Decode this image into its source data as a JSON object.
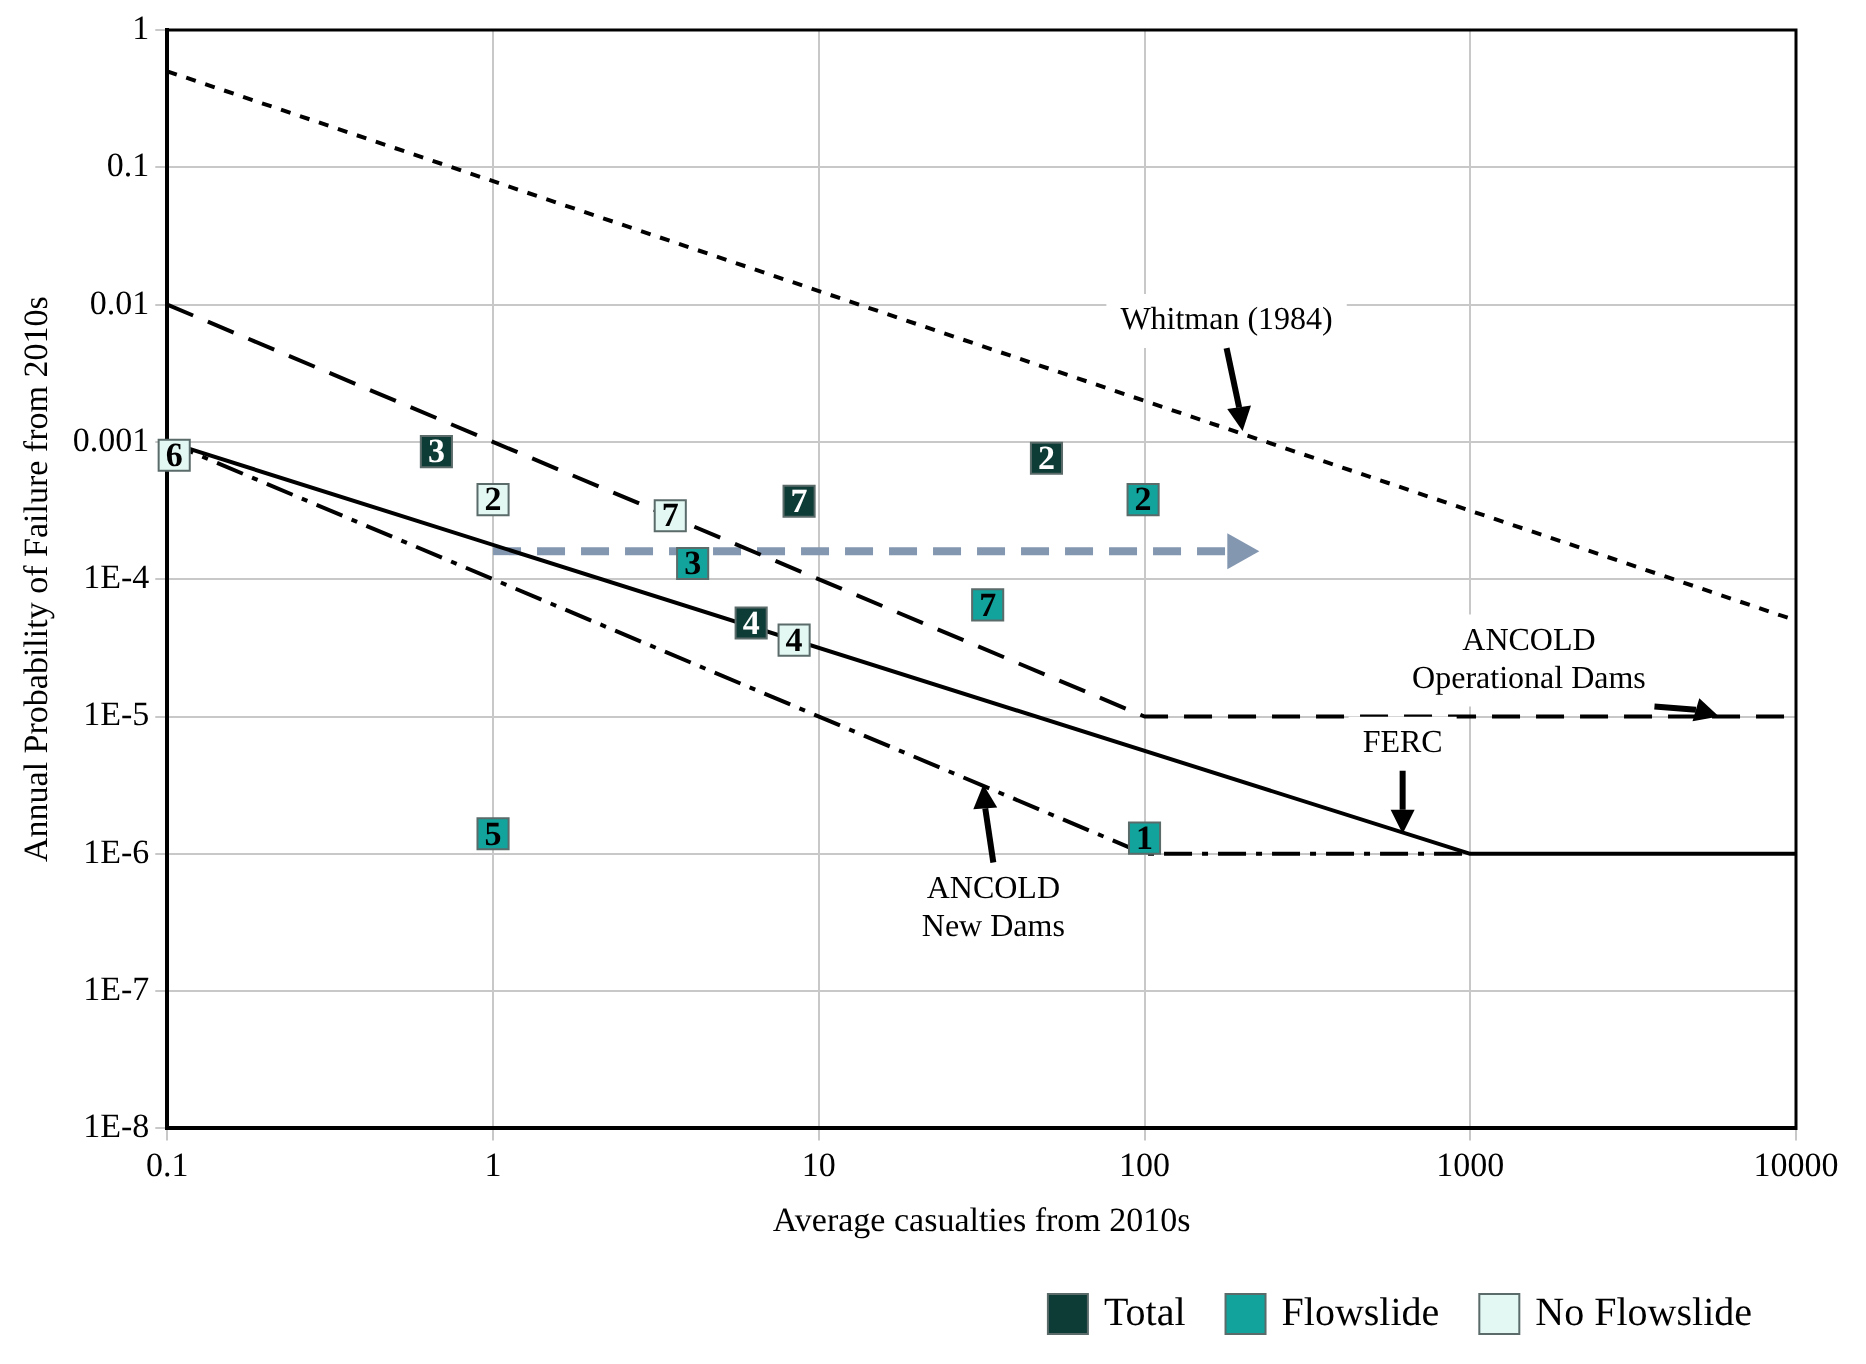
{
  "chart_data": {
    "type": "scatter",
    "xlabel": "Average casualties from 2010s",
    "ylabel": "Annual Probability of Failure from 2010s",
    "log": "xy",
    "xlim": [
      0.1,
      10000
    ],
    "xticks": [
      0.1,
      1,
      10,
      100,
      1000,
      10000
    ],
    "ylim": [
      1e-08,
      1
    ],
    "yticks": [
      1,
      0.1,
      0.01,
      0.001,
      {
        "value": 0.0001,
        "label": "1E-4"
      },
      {
        "value": 1e-05,
        "label": "1E-5"
      },
      {
        "value": 1e-06,
        "label": "1E-6"
      },
      {
        "value": 1e-07,
        "label": "1E-7"
      },
      {
        "value": 1e-08,
        "label": "1E-8"
      }
    ],
    "grid": true,
    "legend": "bottom right",
    "series": [
      {
        "type": "line",
        "color": "#000000",
        "line_style": "dotted",
        "marker": "none",
        "x": [
          0.1,
          10000
        ],
        "values": [
          0.5,
          5e-05
        ]
      },
      {
        "type": "line",
        "color": "#000000",
        "line_style": "dashed",
        "marker": "none",
        "x": [
          0.1,
          100,
          10000
        ],
        "values": [
          0.01,
          1e-05,
          1e-05
        ]
      },
      {
        "type": "line",
        "color": "#000000",
        "line_style": "solid",
        "marker": "none",
        "x": [
          0.1,
          1000,
          10000
        ],
        "values": [
          0.001,
          1e-06,
          1e-06
        ]
      },
      {
        "type": "line",
        "color": "#000000",
        "line_style": "dashdot",
        "marker": "none",
        "x": [
          0.1,
          100,
          1000
        ],
        "values": [
          0.001,
          1e-06,
          1e-06
        ]
      },
      {
        "type": "line",
        "color": "#8497b0",
        "line_style": "dashed",
        "x": [
          1,
          190
        ],
        "values": [
          0.00016,
          0.00016
        ]
      },
      {
        "type": "scatter",
        "name": "Total",
        "color": "#0d3b36",
        "marker": "square",
        "x": [
          0.67,
          8.7,
          50,
          6.2
        ],
        "values": [
          0.00085,
          0.00037,
          0.00076,
          4.8e-05
        ]
      },
      {
        "type": "scatter",
        "name": "Flowslide",
        "color": "#12a39c",
        "marker": "square",
        "x": [
          4.1,
          99,
          33,
          1,
          100
        ],
        "values": [
          0.00013,
          0.00038,
          6.5e-05,
          1.4e-06,
          1.3e-06
        ]
      },
      {
        "type": "scatter",
        "name": "No Flowslide",
        "color": "#e3f7f3",
        "marker": "square",
        "x": [
          0.105,
          1,
          3.5,
          8.4
        ],
        "values": [
          0.0008,
          0.00038,
          0.00029,
          3.6e-05
        ]
      }
    ],
    "annotations": [
      {
        "text": "Whitman (1984)",
        "x": 200,
        "y": 0.0012
      },
      {
        "text": "ANCOLD\nOperational Dams",
        "x": 5800,
        "y": 1e-05
      },
      {
        "text": "FERC",
        "x": 620,
        "y": 1.4e-06
      },
      {
        "text": "ANCOLD\nNew Dams",
        "x": 32,
        "y": 3.2e-06
      },
      {
        "text": "3",
        "x": 0.67,
        "y": 0.00085
      },
      {
        "text": "7",
        "x": 8.7,
        "y": 0.00037
      },
      {
        "text": "2",
        "x": 50,
        "y": 0.00076
      },
      {
        "text": "4",
        "x": 6.2,
        "y": 4.8e-05
      },
      {
        "text": "3",
        "x": 4.1,
        "y": 0.00013
      },
      {
        "text": "2",
        "x": 99,
        "y": 0.00038
      },
      {
        "text": "7",
        "x": 33,
        "y": 6.5e-05
      },
      {
        "text": "5",
        "x": 1,
        "y": 1.4e-06
      },
      {
        "text": "1",
        "x": 100,
        "y": 1.3e-06
      },
      {
        "text": "6",
        "x": 0.105,
        "y": 0.0008
      },
      {
        "text": "2",
        "x": 1,
        "y": 0.00038
      },
      {
        "text": "7",
        "x": 3.5,
        "y": 0.00029
      },
      {
        "text": "4",
        "x": 8.4,
        "y": 3.6e-05
      }
    ]
  }
}
